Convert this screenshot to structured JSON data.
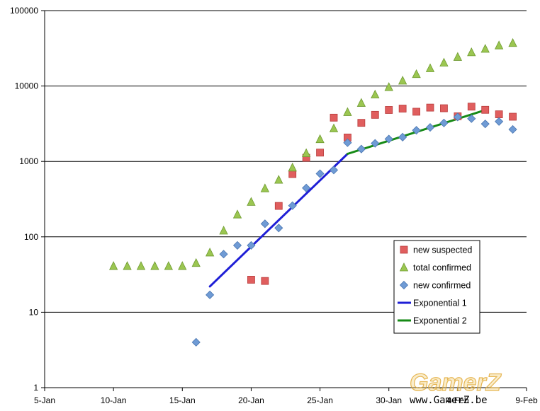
{
  "chart_data": {
    "type": "scatter",
    "title": "",
    "xlabel": "",
    "ylabel": "",
    "x_axis": {
      "type": "date",
      "range": [
        "5-Jan",
        "9-Feb"
      ],
      "tick_labels": [
        "5-Jan",
        "10-Jan",
        "15-Jan",
        "20-Jan",
        "25-Jan",
        "30-Jan",
        "4-Feb",
        "9-Feb"
      ]
    },
    "y_axis": {
      "type": "log",
      "range": [
        1,
        100000
      ],
      "tick_labels": [
        "1",
        "10",
        "100",
        "1000",
        "10000",
        "100000"
      ]
    },
    "grid": {
      "horizontal": true,
      "vertical": false
    },
    "legend_position": "right",
    "series": [
      {
        "name": "new suspected",
        "marker": "square",
        "color": "#e05e5e",
        "points": [
          {
            "x": "20-Jan",
            "y": 27
          },
          {
            "x": "21-Jan",
            "y": 26
          },
          {
            "x": "22-Jan",
            "y": 257
          },
          {
            "x": "23-Jan",
            "y": 680
          },
          {
            "x": "24-Jan",
            "y": 1118
          },
          {
            "x": "25-Jan",
            "y": 1309
          },
          {
            "x": "26-Jan",
            "y": 3806
          },
          {
            "x": "27-Jan",
            "y": 2077
          },
          {
            "x": "28-Jan",
            "y": 3248
          },
          {
            "x": "29-Jan",
            "y": 4148
          },
          {
            "x": "30-Jan",
            "y": 4812
          },
          {
            "x": "31-Jan",
            "y": 5019
          },
          {
            "x": "1-Feb",
            "y": 4562
          },
          {
            "x": "2-Feb",
            "y": 5173
          },
          {
            "x": "3-Feb",
            "y": 5072
          },
          {
            "x": "4-Feb",
            "y": 3971
          },
          {
            "x": "5-Feb",
            "y": 5328
          },
          {
            "x": "6-Feb",
            "y": 4833
          },
          {
            "x": "7-Feb",
            "y": 4214
          },
          {
            "x": "8-Feb",
            "y": 3916
          }
        ]
      },
      {
        "name": "total confirmed",
        "marker": "triangle",
        "color": "#9bc651",
        "points": [
          {
            "x": "10-Jan",
            "y": 41
          },
          {
            "x": "11-Jan",
            "y": 41
          },
          {
            "x": "12-Jan",
            "y": 41
          },
          {
            "x": "13-Jan",
            "y": 41
          },
          {
            "x": "14-Jan",
            "y": 41
          },
          {
            "x": "15-Jan",
            "y": 41
          },
          {
            "x": "16-Jan",
            "y": 45
          },
          {
            "x": "17-Jan",
            "y": 62
          },
          {
            "x": "18-Jan",
            "y": 121
          },
          {
            "x": "19-Jan",
            "y": 198
          },
          {
            "x": "20-Jan",
            "y": 291
          },
          {
            "x": "21-Jan",
            "y": 440
          },
          {
            "x": "22-Jan",
            "y": 571
          },
          {
            "x": "23-Jan",
            "y": 830
          },
          {
            "x": "24-Jan",
            "y": 1287
          },
          {
            "x": "25-Jan",
            "y": 1975
          },
          {
            "x": "26-Jan",
            "y": 2744
          },
          {
            "x": "27-Jan",
            "y": 4515
          },
          {
            "x": "28-Jan",
            "y": 5974
          },
          {
            "x": "29-Jan",
            "y": 7711
          },
          {
            "x": "30-Jan",
            "y": 9692
          },
          {
            "x": "31-Jan",
            "y": 11791
          },
          {
            "x": "1-Feb",
            "y": 14380
          },
          {
            "x": "2-Feb",
            "y": 17205
          },
          {
            "x": "3-Feb",
            "y": 20438
          },
          {
            "x": "4-Feb",
            "y": 24324
          },
          {
            "x": "5-Feb",
            "y": 28018
          },
          {
            "x": "6-Feb",
            "y": 31161
          },
          {
            "x": "7-Feb",
            "y": 34546
          },
          {
            "x": "8-Feb",
            "y": 37198
          }
        ]
      },
      {
        "name": "new confirmed",
        "marker": "diamond",
        "color": "#6f9bd5",
        "points": [
          {
            "x": "16-Jan",
            "y": 4
          },
          {
            "x": "17-Jan",
            "y": 17
          },
          {
            "x": "18-Jan",
            "y": 59
          },
          {
            "x": "19-Jan",
            "y": 77
          },
          {
            "x": "20-Jan",
            "y": 77
          },
          {
            "x": "21-Jan",
            "y": 149
          },
          {
            "x": "22-Jan",
            "y": 131
          },
          {
            "x": "23-Jan",
            "y": 259
          },
          {
            "x": "24-Jan",
            "y": 444
          },
          {
            "x": "25-Jan",
            "y": 688
          },
          {
            "x": "26-Jan",
            "y": 769
          },
          {
            "x": "27-Jan",
            "y": 1771
          },
          {
            "x": "28-Jan",
            "y": 1459
          },
          {
            "x": "29-Jan",
            "y": 1737
          },
          {
            "x": "30-Jan",
            "y": 1981
          },
          {
            "x": "31-Jan",
            "y": 2099
          },
          {
            "x": "1-Feb",
            "y": 2589
          },
          {
            "x": "2-Feb",
            "y": 2825
          },
          {
            "x": "3-Feb",
            "y": 3235
          },
          {
            "x": "4-Feb",
            "y": 3884
          },
          {
            "x": "5-Feb",
            "y": 3694
          },
          {
            "x": "6-Feb",
            "y": 3143
          },
          {
            "x": "7-Feb",
            "y": 3385
          },
          {
            "x": "8-Feb",
            "y": 2656
          }
        ]
      },
      {
        "name": "Exponential 1",
        "marker": "line",
        "color": "#1f1fd6",
        "points": [
          {
            "x": "17-Jan",
            "y": 22
          },
          {
            "x": "27-Jan",
            "y": 1260
          }
        ]
      },
      {
        "name": "Exponential 2",
        "marker": "line",
        "color": "#168a16",
        "points": [
          {
            "x": "27-Jan",
            "y": 1260
          },
          {
            "x": "6-Feb",
            "y": 4800
          }
        ]
      }
    ]
  },
  "watermark": {
    "logo": "GamerZ",
    "url": "www.GamerZ.be"
  }
}
